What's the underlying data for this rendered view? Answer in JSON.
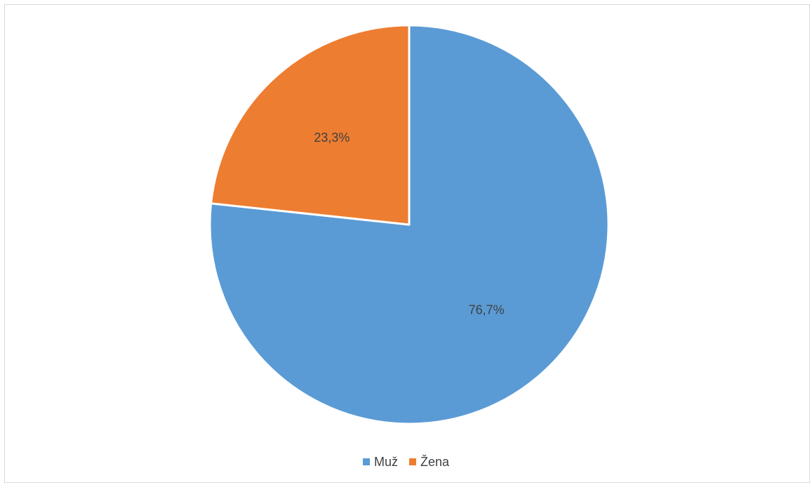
{
  "chart_data": {
    "type": "pie",
    "title": "",
    "slices": [
      {
        "label": "Muž",
        "value": 76.7,
        "display": "76,7%",
        "color": "#5b9bd5"
      },
      {
        "label": "Žena",
        "value": 23.3,
        "display": "23,3%",
        "color": "#ed7d31"
      }
    ],
    "start_angle_deg": 0,
    "direction": "clockwise",
    "legend": {
      "position": "bottom",
      "items": [
        "Muž",
        "Žena"
      ]
    },
    "data_labels": true
  }
}
